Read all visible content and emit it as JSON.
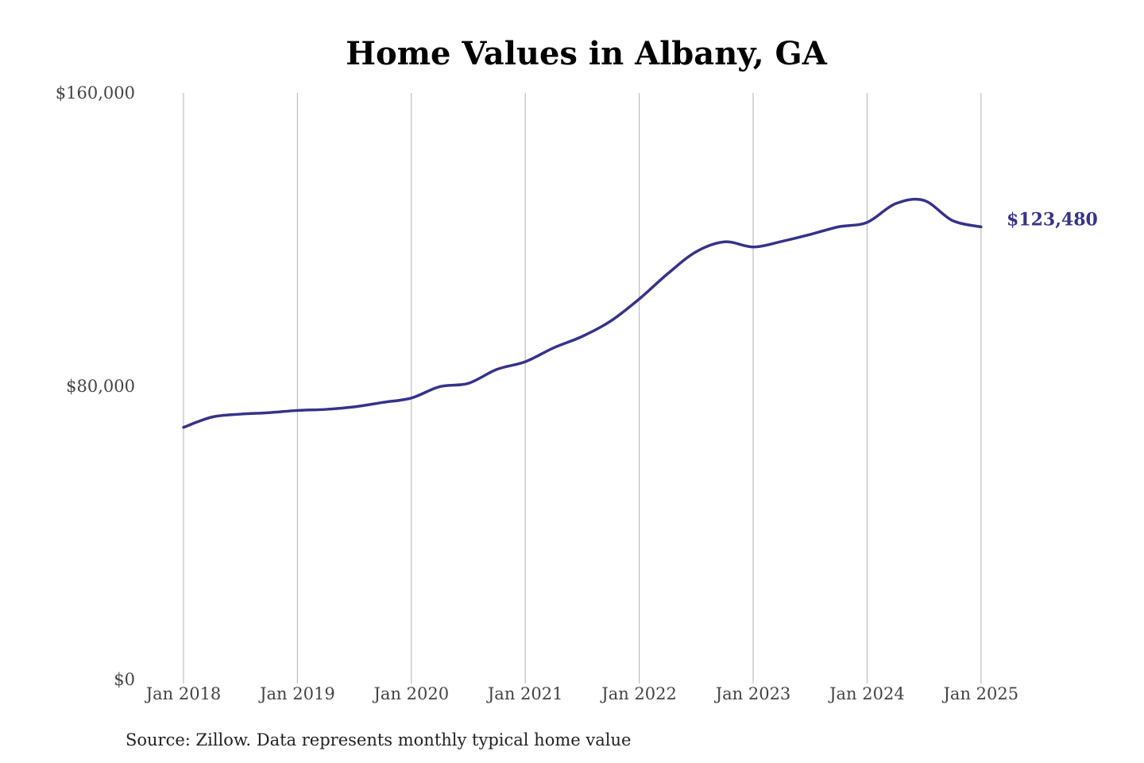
{
  "colors": {
    "series": "#35338a",
    "grid": "#bdbdbd",
    "background": "#ffffff"
  },
  "chart_data": {
    "type": "line",
    "title": "Home Values in Albany, GA",
    "xlabel": "",
    "ylabel": "",
    "ylim": [
      0,
      160000
    ],
    "yticks": [
      0,
      80000,
      160000
    ],
    "ytick_labels": [
      "$0",
      "$80,000",
      "$160,000"
    ],
    "xticks": [
      "Jan 2018",
      "Jan 2019",
      "Jan 2020",
      "Jan 2021",
      "Jan 2022",
      "Jan 2023",
      "Jan 2024",
      "Jan 2025"
    ],
    "grid": "vertical",
    "end_label": "$123,480",
    "source": "Source: Zillow. Data represents monthly typical home value",
    "series": [
      {
        "x": [
          "2018-01",
          "2018-04",
          "2018-07",
          "2018-10",
          "2019-01",
          "2019-04",
          "2019-07",
          "2019-10",
          "2020-01",
          "2020-04",
          "2020-07",
          "2020-10",
          "2021-01",
          "2021-04",
          "2021-07",
          "2021-10",
          "2022-01",
          "2022-04",
          "2022-07",
          "2022-10",
          "2023-01",
          "2023-04",
          "2023-07",
          "2023-10",
          "2024-01",
          "2024-04",
          "2024-07",
          "2024-10",
          "2025-01"
        ],
        "values": [
          68800,
          71600,
          72400,
          72800,
          73400,
          73700,
          74400,
          75600,
          76800,
          79900,
          80800,
          84600,
          86700,
          90500,
          93600,
          97800,
          103800,
          110700,
          116700,
          119400,
          118000,
          119500,
          121400,
          123500,
          124700,
          129800,
          130700,
          125200,
          123480
        ]
      }
    ]
  }
}
